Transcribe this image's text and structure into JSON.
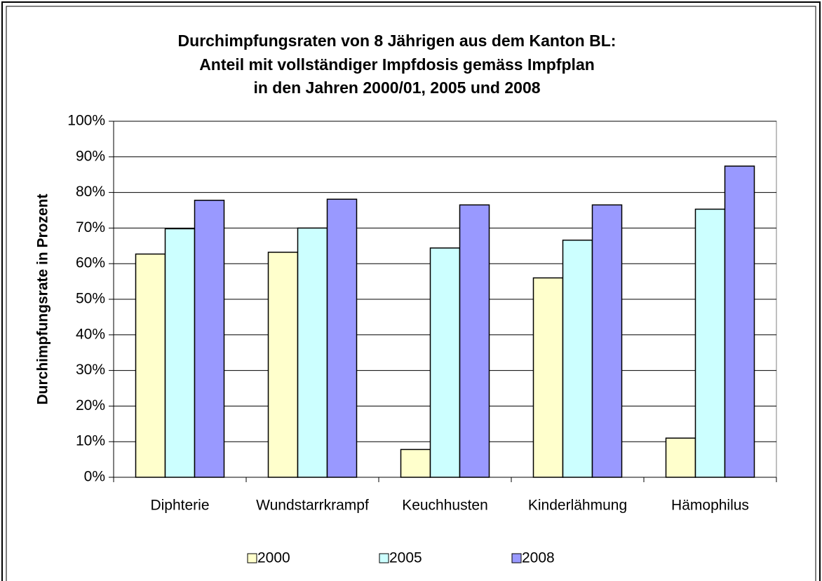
{
  "chart_data": {
    "type": "bar",
    "title": [
      "Durchimpfungsraten von 8 Jährigen aus dem Kanton BL:",
      "Anteil mit vollständiger Impfdosis gemäss Impfplan",
      "in den Jahren 2000/01, 2005 und 2008"
    ],
    "y_label": "Durchimpfungsrate in Prozent",
    "categories": [
      "Diphterie",
      "Wundstarrkrampf",
      "Keuchhusten",
      "Kinderlähmung",
      "Hämophilus"
    ],
    "series": [
      {
        "name": "2000",
        "color": "#ffffcc",
        "values": [
          62.7,
          63.2,
          7.8,
          56,
          11
        ]
      },
      {
        "name": "2005",
        "color": "#ccffff",
        "values": [
          69.8,
          70,
          64.4,
          66.6,
          75.3
        ]
      },
      {
        "name": "2008",
        "color": "#9999ff",
        "values": [
          77.8,
          78.1,
          76.5,
          76.5,
          87.4
        ]
      }
    ],
    "ylim": [
      0,
      100
    ],
    "yticks": [
      {
        "value": 0,
        "label": "0%"
      },
      {
        "value": 10,
        "label": "10%"
      },
      {
        "value": 20,
        "label": "20%"
      },
      {
        "value": 30,
        "label": "30%"
      },
      {
        "value": 40,
        "label": "40%"
      },
      {
        "value": 50,
        "label": "50%"
      },
      {
        "value": 60,
        "label": "60%"
      },
      {
        "value": 70,
        "label": "70%"
      },
      {
        "value": 80,
        "label": "80%"
      },
      {
        "value": 90,
        "label": "90%"
      },
      {
        "value": 100,
        "label": "100%"
      }
    ],
    "grid": true,
    "legend": "bottom"
  }
}
